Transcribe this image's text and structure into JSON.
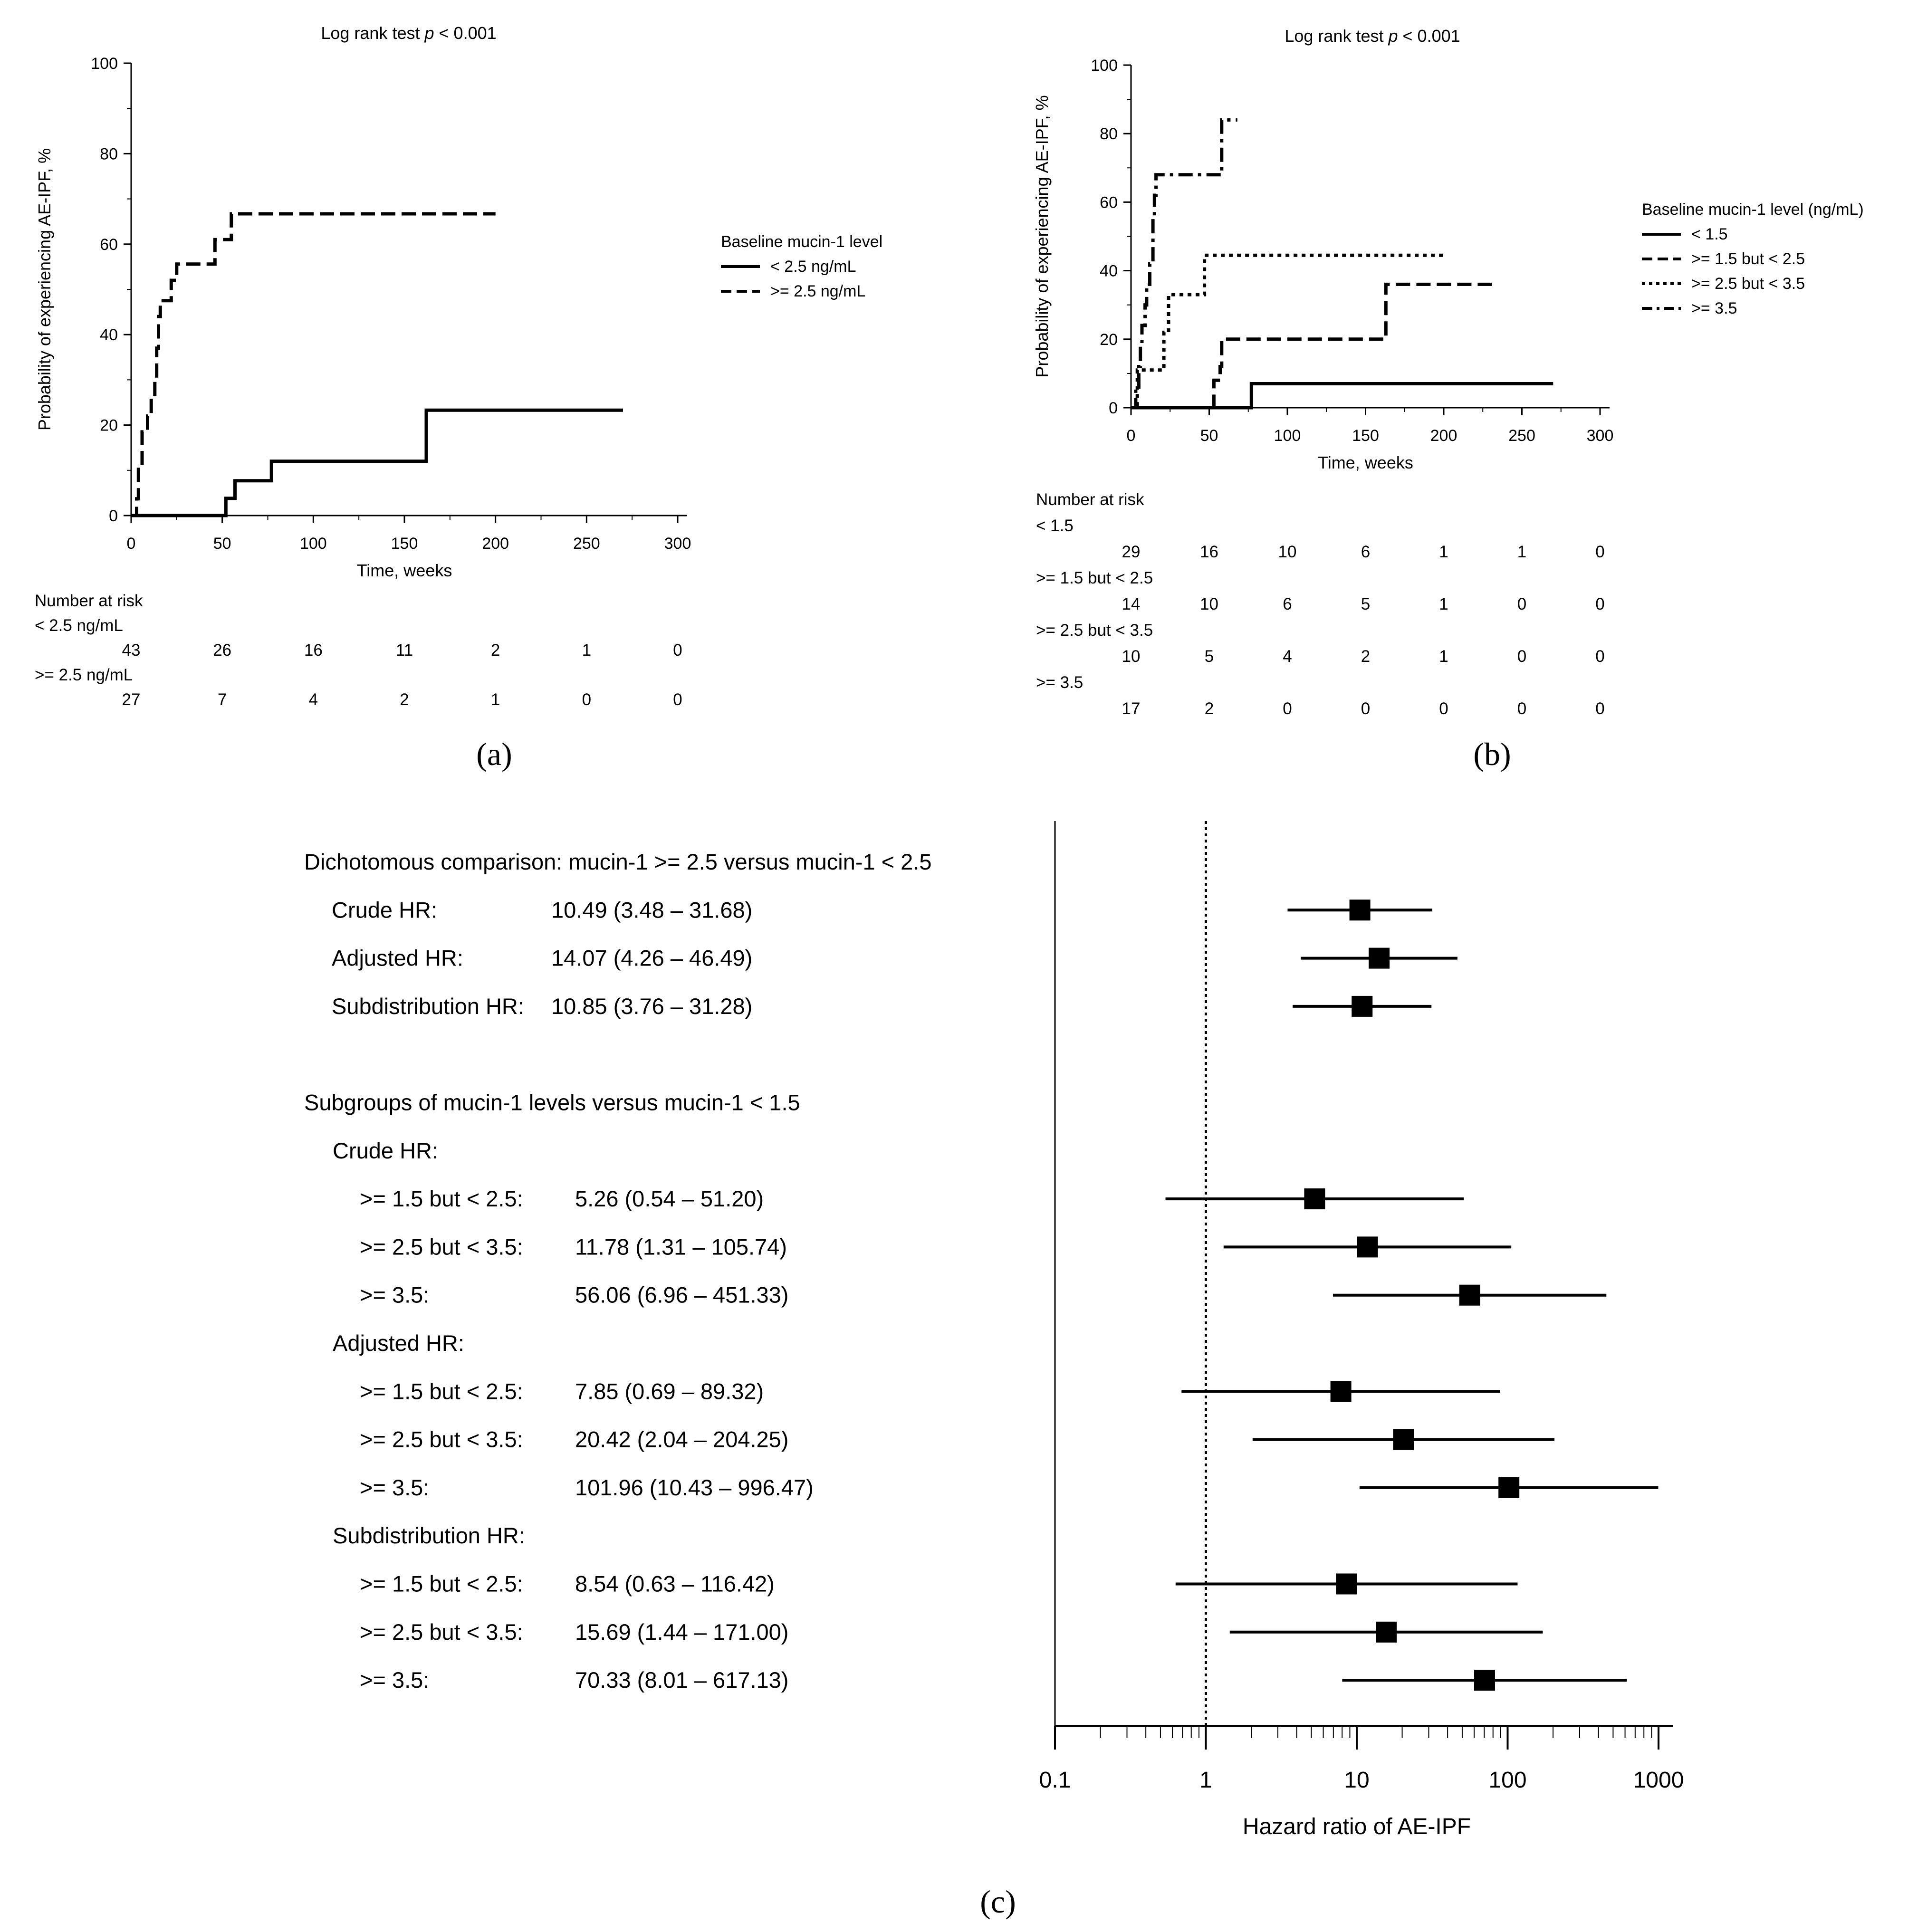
{
  "colors": {
    "ink": "#000000",
    "background": "#ffffff"
  },
  "panel_labels": {
    "a": "(a)",
    "b": "(b)",
    "c": "(c)"
  },
  "chart_data": [
    {
      "id": "a",
      "type": "line",
      "subtype": "kaplan-meier",
      "title_prefix": "Log rank test ",
      "title_p": "p",
      "title_suffix": " < 0.001",
      "xlabel": "Time, weeks",
      "ylabel": "Probability of experiencing AE-IPF, %",
      "xlim": [
        0,
        300
      ],
      "ylim": [
        0,
        100
      ],
      "xticks": [
        0,
        50,
        100,
        150,
        200,
        250,
        300
      ],
      "yticks": [
        0,
        20,
        40,
        60,
        80,
        100
      ],
      "legend_title": "Baseline mucin-1 level",
      "legend_placement": "right",
      "series": [
        {
          "name": "< 2.5 ng/mL",
          "style": "solid",
          "points": [
            [
              0,
              0
            ],
            [
              52,
              0
            ],
            [
              52,
              3.8
            ],
            [
              57,
              3.8
            ],
            [
              57,
              7.7
            ],
            [
              77,
              7.7
            ],
            [
              77,
              12
            ],
            [
              162,
              12
            ],
            [
              162,
              23.3
            ],
            [
              270,
              23.3
            ]
          ]
        },
        {
          "name": ">= 2.5 ng/mL",
          "style": "dashed",
          "points": [
            [
              0,
              0
            ],
            [
              3,
              0
            ],
            [
              3,
              3.7
            ],
            [
              4,
              3.7
            ],
            [
              4,
              11
            ],
            [
              6,
              11
            ],
            [
              6,
              18.5
            ],
            [
              9,
              18.5
            ],
            [
              9,
              22
            ],
            [
              11,
              22
            ],
            [
              11,
              26
            ],
            [
              13,
              26
            ],
            [
              13,
              30
            ],
            [
              14,
              30
            ],
            [
              14,
              37
            ],
            [
              15,
              37
            ],
            [
              15,
              44
            ],
            [
              16,
              44
            ],
            [
              16,
              47.5
            ],
            [
              22,
              47.5
            ],
            [
              22,
              52
            ],
            [
              25,
              52
            ],
            [
              25,
              55.6
            ],
            [
              46,
              55.6
            ],
            [
              46,
              61
            ],
            [
              55,
              61
            ],
            [
              55,
              66.7
            ],
            [
              200,
              66.7
            ]
          ]
        }
      ],
      "risk_table": {
        "title": "Number at risk",
        "times": [
          0,
          50,
          100,
          150,
          200,
          250,
          300
        ],
        "groups": [
          {
            "label": "< 2.5 ng/mL",
            "values": [
              "43",
              "26",
              "16",
              "11",
              "2",
              "1",
              "0"
            ]
          },
          {
            "label": ">= 2.5 ng/mL",
            "values": [
              "27",
              "7",
              "4",
              "2",
              "1",
              "0",
              "0"
            ]
          }
        ]
      }
    },
    {
      "id": "b",
      "type": "line",
      "subtype": "kaplan-meier",
      "title_prefix": "Log rank test ",
      "title_p": "p",
      "title_suffix": " < 0.001",
      "xlabel": "Time, weeks",
      "ylabel": "Probability of experiencing AE-IPF, %",
      "xlim": [
        0,
        300
      ],
      "ylim": [
        0,
        100
      ],
      "xticks": [
        0,
        50,
        100,
        150,
        200,
        250,
        300
      ],
      "yticks": [
        0,
        20,
        40,
        60,
        80,
        100
      ],
      "legend_title": "Baseline mucin-1 level (ng/mL)",
      "legend_placement": "right",
      "series": [
        {
          "name": "< 1.5",
          "style": "solid",
          "points": [
            [
              0,
              0
            ],
            [
              77,
              0
            ],
            [
              77,
              7
            ],
            [
              270,
              7
            ]
          ]
        },
        {
          "name": ">= 1.5 but < 2.5",
          "style": "dashed",
          "points": [
            [
              0,
              0
            ],
            [
              53,
              0
            ],
            [
              53,
              8
            ],
            [
              57,
              8
            ],
            [
              57,
              12
            ],
            [
              58,
              12
            ],
            [
              58,
              20
            ],
            [
              163,
              20
            ],
            [
              163,
              36
            ],
            [
              233,
              36
            ]
          ]
        },
        {
          "name": ">= 2.5 but < 3.5",
          "style": "dotted",
          "points": [
            [
              0,
              0
            ],
            [
              4,
              0
            ],
            [
              4,
              11
            ],
            [
              21,
              11
            ],
            [
              21,
              22
            ],
            [
              24,
              22
            ],
            [
              24,
              33
            ],
            [
              47,
              33
            ],
            [
              47,
              44.5
            ],
            [
              200,
              44.5
            ]
          ]
        },
        {
          "name": ">= 3.5",
          "style": "dashdot",
          "points": [
            [
              0,
              0
            ],
            [
              3,
              0
            ],
            [
              3,
              6
            ],
            [
              5,
              6
            ],
            [
              5,
              12
            ],
            [
              6,
              12
            ],
            [
              6,
              18
            ],
            [
              7,
              18
            ],
            [
              7,
              24
            ],
            [
              9,
              24
            ],
            [
              9,
              30
            ],
            [
              10,
              30
            ],
            [
              10,
              36
            ],
            [
              12,
              36
            ],
            [
              12,
              42
            ],
            [
              14,
              42
            ],
            [
              14,
              56
            ],
            [
              15,
              56
            ],
            [
              15,
              62
            ],
            [
              16,
              62
            ],
            [
              16,
              68
            ],
            [
              58,
              68
            ],
            [
              58,
              84
            ],
            [
              68,
              84
            ]
          ]
        }
      ],
      "risk_table": {
        "title": "Number at risk",
        "times": [
          0,
          50,
          100,
          150,
          200,
          250,
          300
        ],
        "groups": [
          {
            "label": "< 1.5",
            "values": [
              "29",
              "16",
              "10",
              "6",
              "1",
              "1",
              "0"
            ]
          },
          {
            "label": ">= 1.5 but < 2.5",
            "values": [
              "14",
              "10",
              "6",
              "5",
              "1",
              "0",
              "0"
            ]
          },
          {
            "label": ">= 2.5 but < 3.5",
            "values": [
              "10",
              "5",
              "4",
              "2",
              "1",
              "0",
              "0"
            ]
          },
          {
            "label": ">= 3.5",
            "values": [
              "17",
              "2",
              "0",
              "0",
              "0",
              "0",
              "0"
            ]
          }
        ]
      }
    },
    {
      "id": "c",
      "type": "forest",
      "xscale": "log",
      "xlim": [
        0.1,
        1000
      ],
      "xticks": [
        0.1,
        1,
        10,
        100,
        1000
      ],
      "xtick_labels": [
        "0.1",
        "1",
        "10",
        "100",
        "1000"
      ],
      "reference_line": 1,
      "xlabel": "Hazard ratio of AE-IPF",
      "rows": [
        {
          "kind": "header",
          "text": "Dichotomous comparison: mucin-1 >= 2.5 versus mucin-1 < 2.5"
        },
        {
          "kind": "estimate",
          "label": "Crude HR:",
          "value_text": "10.49 (3.48 – 31.68)",
          "hr": 10.49,
          "lo": 3.48,
          "hi": 31.68
        },
        {
          "kind": "estimate",
          "label": "Adjusted HR:",
          "value_text": "14.07 (4.26 – 46.49)",
          "hr": 14.07,
          "lo": 4.26,
          "hi": 46.49
        },
        {
          "kind": "estimate",
          "label": "Subdistribution HR:",
          "value_text": "10.85 (3.76 – 31.28)",
          "hr": 10.85,
          "lo": 3.76,
          "hi": 31.28
        },
        {
          "kind": "spacer"
        },
        {
          "kind": "header",
          "text": "Subgroups of mucin-1 levels versus mucin-1 < 1.5"
        },
        {
          "kind": "subheader",
          "text": "Crude HR:"
        },
        {
          "kind": "estimate",
          "indent": true,
          "label": ">= 1.5 but < 2.5:",
          "value_text": "5.26 (0.54 – 51.20)",
          "hr": 5.26,
          "lo": 0.54,
          "hi": 51.2
        },
        {
          "kind": "estimate",
          "indent": true,
          "label": ">= 2.5 but < 3.5:",
          "value_text": "11.78 (1.31 – 105.74)",
          "hr": 11.78,
          "lo": 1.31,
          "hi": 105.74
        },
        {
          "kind": "estimate",
          "indent": true,
          "label": ">= 3.5:",
          "value_text": "56.06 (6.96 – 451.33)",
          "hr": 56.06,
          "lo": 6.96,
          "hi": 451.33
        },
        {
          "kind": "subheader",
          "text": "Adjusted HR:"
        },
        {
          "kind": "estimate",
          "indent": true,
          "label": ">= 1.5 but < 2.5:",
          "value_text": "7.85 (0.69 – 89.32)",
          "hr": 7.85,
          "lo": 0.69,
          "hi": 89.32
        },
        {
          "kind": "estimate",
          "indent": true,
          "label": ">= 2.5 but < 3.5:",
          "value_text": "20.42 (2.04 – 204.25)",
          "hr": 20.42,
          "lo": 2.04,
          "hi": 204.25
        },
        {
          "kind": "estimate",
          "indent": true,
          "label": ">= 3.5:",
          "value_text": "101.96 (10.43 – 996.47)",
          "hr": 101.96,
          "lo": 10.43,
          "hi": 996.47
        },
        {
          "kind": "subheader",
          "text": "Subdistribution HR:"
        },
        {
          "kind": "estimate",
          "indent": true,
          "label": ">= 1.5 but < 2.5:",
          "value_text": "8.54 (0.63 – 116.42)",
          "hr": 8.54,
          "lo": 0.63,
          "hi": 116.42
        },
        {
          "kind": "estimate",
          "indent": true,
          "label": ">= 2.5 but < 3.5:",
          "value_text": "15.69 (1.44 – 171.00)",
          "hr": 15.69,
          "lo": 1.44,
          "hi": 171.0
        },
        {
          "kind": "estimate",
          "indent": true,
          "label": ">= 3.5:",
          "value_text": "70.33 (8.01 – 617.13)",
          "hr": 70.33,
          "lo": 8.01,
          "hi": 617.13
        }
      ]
    }
  ]
}
